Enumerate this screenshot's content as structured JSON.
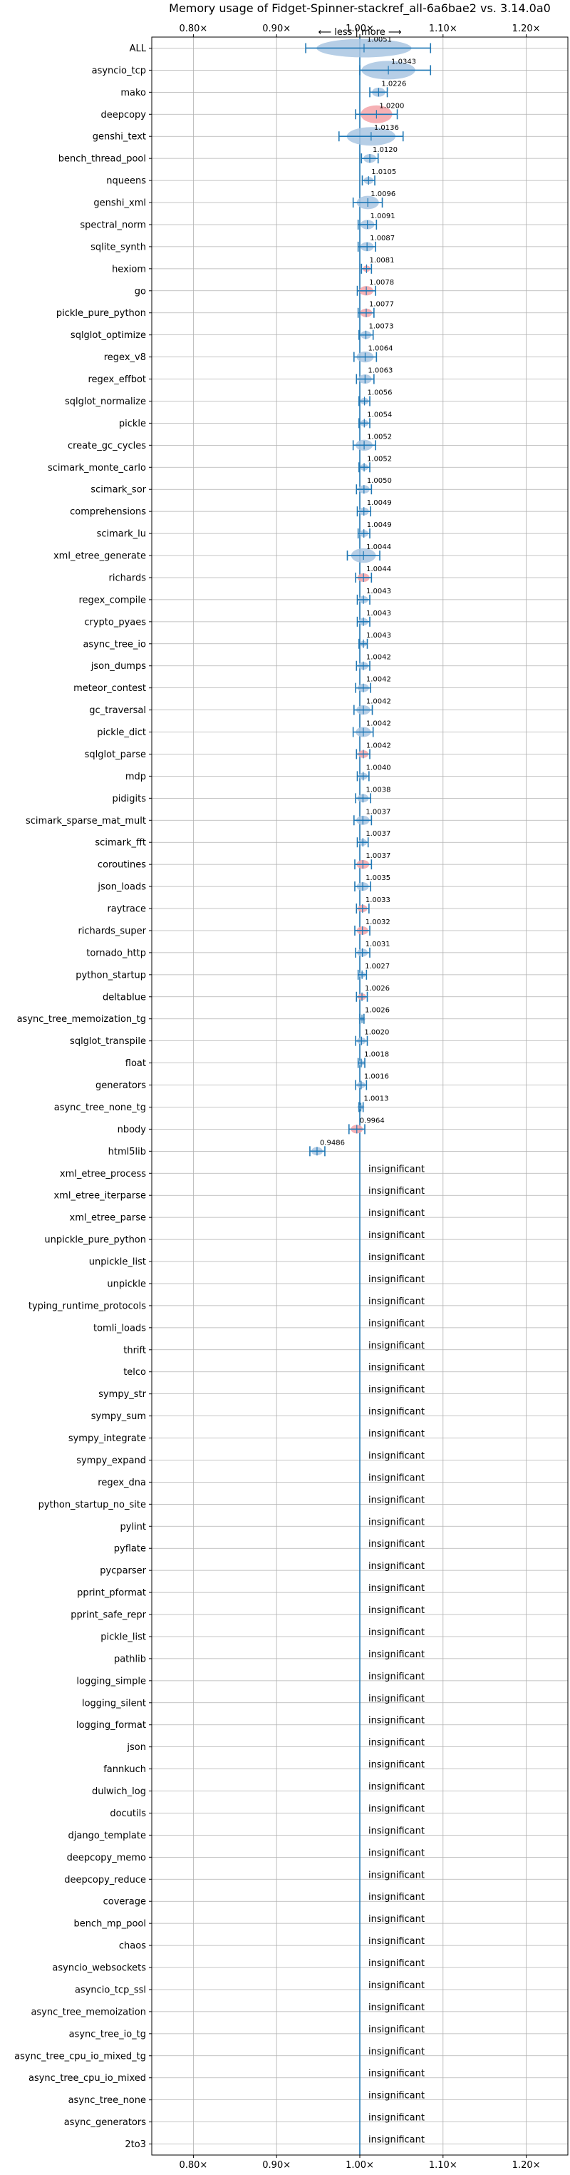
{
  "chart_data": {
    "type": "violin",
    "title": "Memory usage of Fidget-Spinner-stackref_all-6a6bae2 vs. 3.14.0a0",
    "xlim": [
      0.75,
      1.25
    ],
    "xticks": [
      0.8,
      0.9,
      1.0,
      1.1,
      1.2
    ],
    "xtick_labels": [
      "0.80×",
      "0.90×",
      "1.00×",
      "1.10×",
      "1.20×"
    ],
    "reference_line": 1.0,
    "direction_label": "⟵ less | more ⟶",
    "grid": true,
    "colors": {
      "line": "#1f77b4",
      "worse": "#f4a3a8",
      "better": "#a9c6e2",
      "neutral": "#a9c6e2"
    },
    "insignificant_label": "insignificant",
    "benchmarks": [
      {
        "name": "ALL",
        "value": 1.0051,
        "label": "1.0051",
        "lo": 0.935,
        "hi": 1.085,
        "status": "better"
      },
      {
        "name": "asyncio_tcp",
        "value": 1.0343,
        "label": "1.0343",
        "lo": 1.0,
        "hi": 1.085,
        "status": "better"
      },
      {
        "name": "mako",
        "value": 1.0226,
        "label": "1.0226",
        "lo": 1.012,
        "hi": 1.033,
        "status": "better"
      },
      {
        "name": "deepcopy",
        "value": 1.02,
        "label": "1.0200",
        "lo": 0.995,
        "hi": 1.045,
        "status": "worse"
      },
      {
        "name": "genshi_text",
        "value": 1.0136,
        "label": "1.0136",
        "lo": 0.975,
        "hi": 1.052,
        "status": "better"
      },
      {
        "name": "bench_thread_pool",
        "value": 1.012,
        "label": "1.0120",
        "lo": 1.002,
        "hi": 1.022,
        "status": "better"
      },
      {
        "name": "nqueens",
        "value": 1.0105,
        "label": "1.0105",
        "lo": 1.003,
        "hi": 1.018,
        "status": "better"
      },
      {
        "name": "genshi_xml",
        "value": 1.0096,
        "label": "1.0096",
        "lo": 0.992,
        "hi": 1.027,
        "status": "better"
      },
      {
        "name": "spectral_norm",
        "value": 1.0091,
        "label": "1.0091",
        "lo": 0.998,
        "hi": 1.02,
        "status": "better"
      },
      {
        "name": "sqlite_synth",
        "value": 1.0087,
        "label": "1.0087",
        "lo": 0.998,
        "hi": 1.019,
        "status": "better"
      },
      {
        "name": "hexiom",
        "value": 1.0081,
        "label": "1.0081",
        "lo": 1.002,
        "hi": 1.014,
        "status": "worse"
      },
      {
        "name": "go",
        "value": 1.0078,
        "label": "1.0078",
        "lo": 0.997,
        "hi": 1.019,
        "status": "worse"
      },
      {
        "name": "pickle_pure_python",
        "value": 1.0077,
        "label": "1.0077",
        "lo": 0.998,
        "hi": 1.017,
        "status": "worse"
      },
      {
        "name": "sqlglot_optimize",
        "value": 1.0073,
        "label": "1.0073",
        "lo": 0.999,
        "hi": 1.016,
        "status": "better"
      },
      {
        "name": "regex_v8",
        "value": 1.0064,
        "label": "1.0064",
        "lo": 0.993,
        "hi": 1.02,
        "status": "better"
      },
      {
        "name": "regex_effbot",
        "value": 1.0063,
        "label": "1.0063",
        "lo": 0.996,
        "hi": 1.017,
        "status": "better"
      },
      {
        "name": "sqlglot_normalize",
        "value": 1.0056,
        "label": "1.0056",
        "lo": 0.999,
        "hi": 1.012,
        "status": "better"
      },
      {
        "name": "pickle",
        "value": 1.0054,
        "label": "1.0054",
        "lo": 0.999,
        "hi": 1.012,
        "status": "better"
      },
      {
        "name": "create_gc_cycles",
        "value": 1.0052,
        "label": "1.0052",
        "lo": 0.992,
        "hi": 1.019,
        "status": "better"
      },
      {
        "name": "scimark_monte_carlo",
        "value": 1.0052,
        "label": "1.0052",
        "lo": 0.999,
        "hi": 1.012,
        "status": "better"
      },
      {
        "name": "scimark_sor",
        "value": 1.005,
        "label": "1.0050",
        "lo": 0.996,
        "hi": 1.014,
        "status": "better"
      },
      {
        "name": "comprehensions",
        "value": 1.0049,
        "label": "1.0049",
        "lo": 0.997,
        "hi": 1.013,
        "status": "better"
      },
      {
        "name": "scimark_lu",
        "value": 1.0049,
        "label": "1.0049",
        "lo": 0.998,
        "hi": 1.012,
        "status": "better"
      },
      {
        "name": "xml_etree_generate",
        "value": 1.0044,
        "label": "1.0044",
        "lo": 0.985,
        "hi": 1.024,
        "status": "better"
      },
      {
        "name": "richards",
        "value": 1.0044,
        "label": "1.0044",
        "lo": 0.995,
        "hi": 1.014,
        "status": "worse"
      },
      {
        "name": "regex_compile",
        "value": 1.0043,
        "label": "1.0043",
        "lo": 0.997,
        "hi": 1.012,
        "status": "better"
      },
      {
        "name": "crypto_pyaes",
        "value": 1.0043,
        "label": "1.0043",
        "lo": 0.997,
        "hi": 1.012,
        "status": "better"
      },
      {
        "name": "async_tree_io",
        "value": 1.0043,
        "label": "1.0043",
        "lo": 0.999,
        "hi": 1.009,
        "status": "better"
      },
      {
        "name": "json_dumps",
        "value": 1.0042,
        "label": "1.0042",
        "lo": 0.996,
        "hi": 1.012,
        "status": "better"
      },
      {
        "name": "meteor_contest",
        "value": 1.0042,
        "label": "1.0042",
        "lo": 0.995,
        "hi": 1.013,
        "status": "better"
      },
      {
        "name": "gc_traversal",
        "value": 1.0042,
        "label": "1.0042",
        "lo": 0.993,
        "hi": 1.015,
        "status": "better"
      },
      {
        "name": "pickle_dict",
        "value": 1.0042,
        "label": "1.0042",
        "lo": 0.992,
        "hi": 1.016,
        "status": "better"
      },
      {
        "name": "sqlglot_parse",
        "value": 1.0042,
        "label": "1.0042",
        "lo": 0.996,
        "hi": 1.012,
        "status": "worse"
      },
      {
        "name": "mdp",
        "value": 1.004,
        "label": "1.0040",
        "lo": 0.997,
        "hi": 1.011,
        "status": "better"
      },
      {
        "name": "pidigits",
        "value": 1.0038,
        "label": "1.0038",
        "lo": 0.995,
        "hi": 1.013,
        "status": "better"
      },
      {
        "name": "scimark_sparse_mat_mult",
        "value": 1.0037,
        "label": "1.0037",
        "lo": 0.993,
        "hi": 1.014,
        "status": "better"
      },
      {
        "name": "scimark_fft",
        "value": 1.0037,
        "label": "1.0037",
        "lo": 0.997,
        "hi": 1.01,
        "status": "better"
      },
      {
        "name": "coroutines",
        "value": 1.0037,
        "label": "1.0037",
        "lo": 0.994,
        "hi": 1.014,
        "status": "worse"
      },
      {
        "name": "json_loads",
        "value": 1.0035,
        "label": "1.0035",
        "lo": 0.994,
        "hi": 1.013,
        "status": "better"
      },
      {
        "name": "raytrace",
        "value": 1.0033,
        "label": "1.0033",
        "lo": 0.996,
        "hi": 1.011,
        "status": "worse"
      },
      {
        "name": "richards_super",
        "value": 1.0032,
        "label": "1.0032",
        "lo": 0.994,
        "hi": 1.012,
        "status": "worse"
      },
      {
        "name": "tornado_http",
        "value": 1.0031,
        "label": "1.0031",
        "lo": 0.995,
        "hi": 1.012,
        "status": "better"
      },
      {
        "name": "python_startup",
        "value": 1.0027,
        "label": "1.0027",
        "lo": 0.998,
        "hi": 1.008,
        "status": "better"
      },
      {
        "name": "deltablue",
        "value": 1.0026,
        "label": "1.0026",
        "lo": 0.996,
        "hi": 1.009,
        "status": "worse"
      },
      {
        "name": "async_tree_memoization_tg",
        "value": 1.0026,
        "label": "1.0026",
        "lo": 1.0,
        "hi": 1.005,
        "status": "better"
      },
      {
        "name": "sqlglot_transpile",
        "value": 1.002,
        "label": "1.0020",
        "lo": 0.995,
        "hi": 1.009,
        "status": "better"
      },
      {
        "name": "float",
        "value": 1.0018,
        "label": "1.0018",
        "lo": 0.998,
        "hi": 1.006,
        "status": "better"
      },
      {
        "name": "generators",
        "value": 1.0016,
        "label": "1.0016",
        "lo": 0.995,
        "hi": 1.008,
        "status": "better"
      },
      {
        "name": "async_tree_none_tg",
        "value": 1.0013,
        "label": "1.0013",
        "lo": 0.999,
        "hi": 1.004,
        "status": "better"
      },
      {
        "name": "nbody",
        "value": 0.9964,
        "label": "0.9964",
        "lo": 0.987,
        "hi": 1.006,
        "status": "worse"
      },
      {
        "name": "html5lib",
        "value": 0.9486,
        "label": "0.9486",
        "lo": 0.94,
        "hi": 0.958,
        "status": "better"
      },
      {
        "name": "xml_etree_process",
        "value": null,
        "label": "",
        "status": "insignificant"
      },
      {
        "name": "xml_etree_iterparse",
        "value": null,
        "label": "",
        "status": "insignificant"
      },
      {
        "name": "xml_etree_parse",
        "value": null,
        "label": "",
        "status": "insignificant"
      },
      {
        "name": "unpickle_pure_python",
        "value": null,
        "label": "",
        "status": "insignificant"
      },
      {
        "name": "unpickle_list",
        "value": null,
        "label": "",
        "status": "insignificant"
      },
      {
        "name": "unpickle",
        "value": null,
        "label": "",
        "status": "insignificant"
      },
      {
        "name": "typing_runtime_protocols",
        "value": null,
        "label": "",
        "status": "insignificant"
      },
      {
        "name": "tomli_loads",
        "value": null,
        "label": "",
        "status": "insignificant"
      },
      {
        "name": "thrift",
        "value": null,
        "label": "",
        "status": "insignificant"
      },
      {
        "name": "telco",
        "value": null,
        "label": "",
        "status": "insignificant"
      },
      {
        "name": "sympy_str",
        "value": null,
        "label": "",
        "status": "insignificant"
      },
      {
        "name": "sympy_sum",
        "value": null,
        "label": "",
        "status": "insignificant"
      },
      {
        "name": "sympy_integrate",
        "value": null,
        "label": "",
        "status": "insignificant"
      },
      {
        "name": "sympy_expand",
        "value": null,
        "label": "",
        "status": "insignificant"
      },
      {
        "name": "regex_dna",
        "value": null,
        "label": "",
        "status": "insignificant"
      },
      {
        "name": "python_startup_no_site",
        "value": null,
        "label": "",
        "status": "insignificant"
      },
      {
        "name": "pylint",
        "value": null,
        "label": "",
        "status": "insignificant"
      },
      {
        "name": "pyflate",
        "value": null,
        "label": "",
        "status": "insignificant"
      },
      {
        "name": "pycparser",
        "value": null,
        "label": "",
        "status": "insignificant"
      },
      {
        "name": "pprint_pformat",
        "value": null,
        "label": "",
        "status": "insignificant"
      },
      {
        "name": "pprint_safe_repr",
        "value": null,
        "label": "",
        "status": "insignificant"
      },
      {
        "name": "pickle_list",
        "value": null,
        "label": "",
        "status": "insignificant"
      },
      {
        "name": "pathlib",
        "value": null,
        "label": "",
        "status": "insignificant"
      },
      {
        "name": "logging_simple",
        "value": null,
        "label": "",
        "status": "insignificant"
      },
      {
        "name": "logging_silent",
        "value": null,
        "label": "",
        "status": "insignificant"
      },
      {
        "name": "logging_format",
        "value": null,
        "label": "",
        "status": "insignificant"
      },
      {
        "name": "json",
        "value": null,
        "label": "",
        "status": "insignificant"
      },
      {
        "name": "fannkuch",
        "value": null,
        "label": "",
        "status": "insignificant"
      },
      {
        "name": "dulwich_log",
        "value": null,
        "label": "",
        "status": "insignificant"
      },
      {
        "name": "docutils",
        "value": null,
        "label": "",
        "status": "insignificant"
      },
      {
        "name": "django_template",
        "value": null,
        "label": "",
        "status": "insignificant"
      },
      {
        "name": "deepcopy_memo",
        "value": null,
        "label": "",
        "status": "insignificant"
      },
      {
        "name": "deepcopy_reduce",
        "value": null,
        "label": "",
        "status": "insignificant"
      },
      {
        "name": "coverage",
        "value": null,
        "label": "",
        "status": "insignificant"
      },
      {
        "name": "bench_mp_pool",
        "value": null,
        "label": "",
        "status": "insignificant"
      },
      {
        "name": "chaos",
        "value": null,
        "label": "",
        "status": "insignificant"
      },
      {
        "name": "asyncio_websockets",
        "value": null,
        "label": "",
        "status": "insignificant"
      },
      {
        "name": "asyncio_tcp_ssl",
        "value": null,
        "label": "",
        "status": "insignificant"
      },
      {
        "name": "async_tree_memoization",
        "value": null,
        "label": "",
        "status": "insignificant"
      },
      {
        "name": "async_tree_io_tg",
        "value": null,
        "label": "",
        "status": "insignificant"
      },
      {
        "name": "async_tree_cpu_io_mixed_tg",
        "value": null,
        "label": "",
        "status": "insignificant"
      },
      {
        "name": "async_tree_cpu_io_mixed",
        "value": null,
        "label": "",
        "status": "insignificant"
      },
      {
        "name": "async_tree_none",
        "value": null,
        "label": "",
        "status": "insignificant"
      },
      {
        "name": "async_generators",
        "value": null,
        "label": "",
        "status": "insignificant"
      },
      {
        "name": "2to3",
        "value": null,
        "label": "",
        "status": "insignificant"
      }
    ]
  }
}
